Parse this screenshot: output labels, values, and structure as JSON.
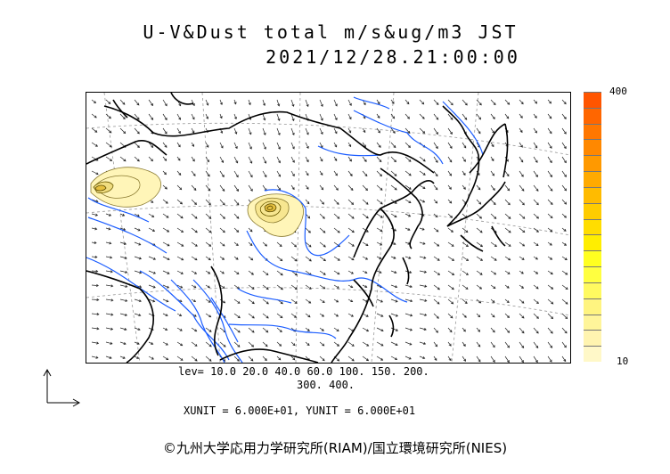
{
  "title": {
    "line1": "U-V&Dust total m/s&ug/m3 JST",
    "line2": "2021/12/28.21:00:00"
  },
  "colorbar": {
    "max_label": "400",
    "min_label": "10",
    "colors": [
      "#fff8c8",
      "#fff4b0",
      "#fff59a",
      "#fff480",
      "#fffa60",
      "#ffff40",
      "#ffff20",
      "#ffee00",
      "#ffdd00",
      "#ffcc00",
      "#ffbb00",
      "#ffaa00",
      "#ff9900",
      "#ff8800",
      "#ff7700",
      "#ff6600",
      "#ff5500"
    ]
  },
  "legend": {
    "levels_line1": "lev= 10.0 20.0 40.0 60.0 100. 150. 200.",
    "levels_line2": "300. 400."
  },
  "units_text": "XUNIT = 6.000E+01, YUNIT = 6.000E+01",
  "credit": "©九州大学応用力学研究所(RIAM)/国立環境研究所(NIES)",
  "colors": {
    "coast": "#000000",
    "rivers": "#1a5cff",
    "dust_fill": "#fff5b8",
    "dust_contour": "#6b5a00",
    "grid": "#888888"
  },
  "icons": [
    "axis-arrows-icon",
    "copyright-icon"
  ]
}
